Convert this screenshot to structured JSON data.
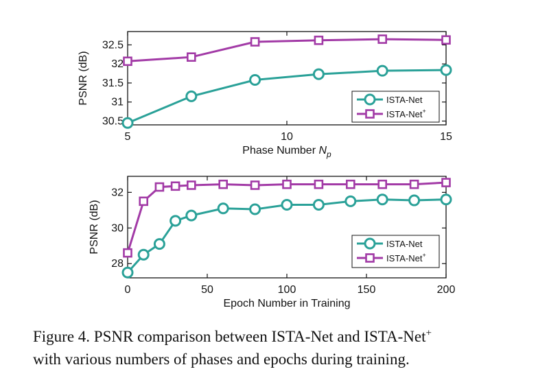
{
  "colors": {
    "series1": "#2aa198",
    "series2": "#a23aa6",
    "axis": "#111111"
  },
  "chart_data": [
    {
      "type": "line",
      "xlabel": "Phase Number",
      "xlabel_symbol": "N",
      "xlabel_subscript": "p",
      "ylabel": "PSNR (dB)",
      "xlim": [
        5,
        15
      ],
      "ylim": [
        30.4,
        32.85
      ],
      "xticks": [
        5,
        10,
        15
      ],
      "yticks": [
        30.5,
        31,
        31.5,
        32,
        32.5
      ],
      "grid": false,
      "legend_position": "lower-right",
      "series": [
        {
          "name": "ISTA-Net",
          "marker": "circle",
          "x": [
            5,
            7,
            9,
            11,
            13,
            15
          ],
          "y": [
            30.45,
            31.15,
            31.58,
            31.73,
            31.82,
            31.84
          ]
        },
        {
          "name": "ISTA-Net",
          "name_suffix": "+",
          "marker": "square",
          "x": [
            5,
            7,
            9,
            11,
            13,
            15
          ],
          "y": [
            32.07,
            32.18,
            32.58,
            32.62,
            32.65,
            32.63
          ]
        }
      ]
    },
    {
      "type": "line",
      "xlabel": "Epoch Number in Training",
      "ylabel": "PSNR (dB)",
      "xlim": [
        0,
        200
      ],
      "ylim": [
        27.2,
        32.9
      ],
      "xticks": [
        0,
        50,
        100,
        150,
        200
      ],
      "yticks": [
        28,
        30,
        32
      ],
      "grid": false,
      "legend_position": "lower-right",
      "series": [
        {
          "name": "ISTA-Net",
          "marker": "circle",
          "x": [
            0,
            10,
            20,
            30,
            40,
            60,
            80,
            100,
            120,
            140,
            160,
            180,
            200
          ],
          "y": [
            27.5,
            28.5,
            29.1,
            30.4,
            30.7,
            31.1,
            31.05,
            31.3,
            31.3,
            31.5,
            31.6,
            31.55,
            31.6
          ]
        },
        {
          "name": "ISTA-Net",
          "name_suffix": "+",
          "marker": "square",
          "x": [
            0,
            10,
            20,
            30,
            40,
            60,
            80,
            100,
            120,
            140,
            160,
            180,
            200
          ],
          "y": [
            28.6,
            31.5,
            32.3,
            32.35,
            32.4,
            32.45,
            32.4,
            32.45,
            32.45,
            32.45,
            32.45,
            32.45,
            32.55
          ]
        }
      ]
    }
  ],
  "caption": {
    "text_main": "Figure 4. PSNR comparison between ISTA-Net and ISTA-Net",
    "text_sup": "+",
    "text_rest": "with various numbers of phases and epochs during training."
  }
}
